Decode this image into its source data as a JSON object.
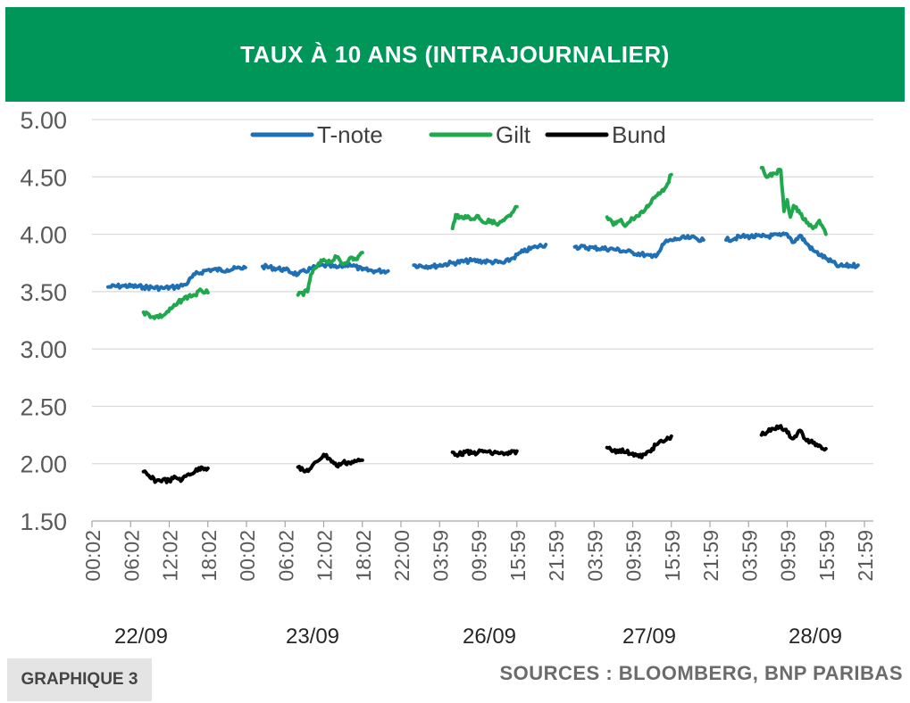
{
  "header": {
    "title": "TAUX À 10 ANS (INTRAJOURNALIER)"
  },
  "footer": {
    "figure_label": "GRAPHIQUE 3",
    "sources": "SOURCES : BLOOMBERG, BNP PARIBAS"
  },
  "colors": {
    "header_bg": "#00965a",
    "tnote": "#1f6fb5",
    "gilt": "#1fa84e",
    "bund": "#000000",
    "grid": "#d9d9d9"
  },
  "chart_data": {
    "type": "line",
    "title": "TAUX À 10 ANS (INTRAJOURNALIER)",
    "ylim": [
      1.5,
      5.0
    ],
    "yticks": [
      "5.00",
      "4.50",
      "4.00",
      "3.50",
      "3.00",
      "2.50",
      "2.00",
      "1.50"
    ],
    "grid": true,
    "legend_position": "top",
    "x_tick_labels": [
      "00:02",
      "06:02",
      "12:02",
      "18:02",
      "00:02",
      "06:02",
      "12:02",
      "18:02",
      "22:00",
      "03:59",
      "09:59",
      "15:59",
      "21:59",
      "03:59",
      "09:59",
      "15:59",
      "21:59",
      "03:59",
      "09:59",
      "15:59",
      "21:59"
    ],
    "day_labels": [
      "22/09",
      "23/09",
      "26/09",
      "27/09",
      "28/09"
    ],
    "series": [
      {
        "name": "T-note",
        "segments": [
          {
            "day": "22/09",
            "x": [
              "02:30",
              "05:00",
              "08:00",
              "11:00",
              "13:00",
              "14:30",
              "16:00",
              "18:00",
              "21:00",
              "23:50"
            ],
            "y": [
              3.54,
              3.55,
              3.54,
              3.53,
              3.54,
              3.56,
              3.65,
              3.69,
              3.69,
              3.71
            ]
          },
          {
            "day": "23/09",
            "x": [
              "02:30",
              "06:00",
              "08:00",
              "10:00",
              "12:00",
              "14:00",
              "16:00",
              "18:00",
              "20:00",
              "22:00"
            ],
            "y": [
              3.72,
              3.69,
              3.65,
              3.7,
              3.73,
              3.71,
              3.74,
              3.69,
              3.68,
              3.68
            ]
          },
          {
            "day": "26/09",
            "x": [
              "02:00",
              "05:00",
              "08:00",
              "11:00",
              "14:00",
              "16:00",
              "17:00",
              "19:00",
              "21:00",
              "22:30"
            ],
            "y": [
              3.73,
              3.72,
              3.75,
              3.77,
              3.76,
              3.75,
              3.78,
              3.85,
              3.89,
              3.91
            ]
          },
          {
            "day": "27/09",
            "x": [
              "03:00",
              "06:00",
              "09:00",
              "12:00",
              "14:00",
              "15:00",
              "16:00",
              "17:00",
              "19:00",
              "21:00",
              "23:00"
            ],
            "y": [
              3.89,
              3.88,
              3.87,
              3.84,
              3.82,
              3.8,
              3.84,
              3.93,
              3.96,
              3.97,
              3.95
            ]
          },
          {
            "day": "28/09",
            "x": [
              "02:30",
              "05:00",
              "08:00",
              "11:00",
              "12:00",
              "13:00",
              "14:00",
              "15:00",
              "16:00",
              "18:00",
              "20:00",
              "23:00"
            ],
            "y": [
              3.95,
              3.98,
              3.98,
              3.99,
              4.0,
              3.93,
              3.99,
              3.92,
              3.86,
              3.79,
              3.72,
              3.73
            ]
          }
        ]
      },
      {
        "name": "Gilt",
        "segments": [
          {
            "day": "22/09",
            "x": [
              "08:00",
              "09:30",
              "11:00",
              "13:00",
              "14:00",
              "15:00",
              "16:00",
              "17:00",
              "18:00"
            ],
            "y": [
              3.32,
              3.28,
              3.29,
              3.38,
              3.43,
              3.46,
              3.47,
              3.51,
              3.49
            ]
          },
          {
            "day": "23/09",
            "x": [
              "08:00",
              "09:30",
              "10:00",
              "11:00",
              "12:00",
              "13:00",
              "14:00",
              "15:00",
              "16:00",
              "17:00",
              "18:00"
            ],
            "y": [
              3.47,
              3.5,
              3.65,
              3.72,
              3.78,
              3.76,
              3.8,
              3.74,
              3.79,
              3.78,
              3.84
            ]
          },
          {
            "day": "26/09",
            "x": [
              "08:00",
              "08:30",
              "09:00",
              "10:00",
              "11:00",
              "12:00",
              "13:00",
              "14:00",
              "15:00",
              "16:00",
              "17:00",
              "18:00"
            ],
            "y": [
              4.05,
              4.17,
              4.14,
              4.16,
              4.13,
              4.16,
              4.1,
              4.12,
              4.08,
              4.12,
              4.16,
              4.24
            ]
          },
          {
            "day": "27/09",
            "x": [
              "08:00",
              "09:00",
              "10:00",
              "11:00",
              "12:00",
              "13:00",
              "14:00",
              "15:00",
              "16:00",
              "17:00",
              "18:00"
            ],
            "y": [
              4.15,
              4.08,
              4.12,
              4.08,
              4.14,
              4.16,
              4.22,
              4.3,
              4.36,
              4.4,
              4.52
            ]
          },
          {
            "day": "28/09",
            "x": [
              "08:00",
              "09:00",
              "10:00",
              "11:00",
              "11:30",
              "12:00",
              "12:30",
              "13:00",
              "14:00",
              "15:00",
              "16:00",
              "17:00",
              "18:00"
            ],
            "y": [
              4.58,
              4.5,
              4.53,
              4.56,
              4.2,
              4.3,
              4.15,
              4.25,
              4.18,
              4.1,
              4.05,
              4.12,
              4.0
            ]
          }
        ]
      },
      {
        "name": "Bund",
        "segments": [
          {
            "day": "22/09",
            "x": [
              "08:00",
              "09:00",
              "10:00",
              "11:00",
              "12:00",
              "13:00",
              "14:00",
              "15:00",
              "16:00",
              "17:00",
              "18:00"
            ],
            "y": [
              1.93,
              1.88,
              1.85,
              1.86,
              1.85,
              1.88,
              1.86,
              1.91,
              1.93,
              1.97,
              1.96
            ]
          },
          {
            "day": "23/09",
            "x": [
              "08:00",
              "09:00",
              "10:00",
              "11:00",
              "12:00",
              "13:00",
              "14:00",
              "15:00",
              "16:00",
              "17:00",
              "18:00"
            ],
            "y": [
              1.97,
              1.93,
              1.96,
              2.02,
              2.08,
              2.04,
              1.98,
              2.01,
              2.01,
              2.02,
              2.03
            ]
          },
          {
            "day": "26/09",
            "x": [
              "08:00",
              "09:00",
              "10:00",
              "11:00",
              "12:00",
              "13:00",
              "14:00",
              "15:00",
              "16:00",
              "17:00",
              "18:00"
            ],
            "y": [
              2.1,
              2.08,
              2.1,
              2.09,
              2.1,
              2.11,
              2.09,
              2.1,
              2.08,
              2.09,
              2.11
            ]
          },
          {
            "day": "27/09",
            "x": [
              "08:00",
              "09:00",
              "10:00",
              "11:00",
              "12:00",
              "13:00",
              "14:00",
              "15:00",
              "16:00",
              "17:00",
              "18:00"
            ],
            "y": [
              2.14,
              2.11,
              2.12,
              2.1,
              2.09,
              2.06,
              2.08,
              2.13,
              2.18,
              2.2,
              2.24
            ]
          },
          {
            "day": "28/09",
            "x": [
              "08:00",
              "09:00",
              "10:00",
              "11:00",
              "12:00",
              "13:00",
              "14:00",
              "15:00",
              "16:00",
              "17:00",
              "18:00"
            ],
            "y": [
              2.25,
              2.28,
              2.3,
              2.33,
              2.27,
              2.22,
              2.29,
              2.2,
              2.18,
              2.16,
              2.13
            ]
          }
        ]
      }
    ]
  }
}
